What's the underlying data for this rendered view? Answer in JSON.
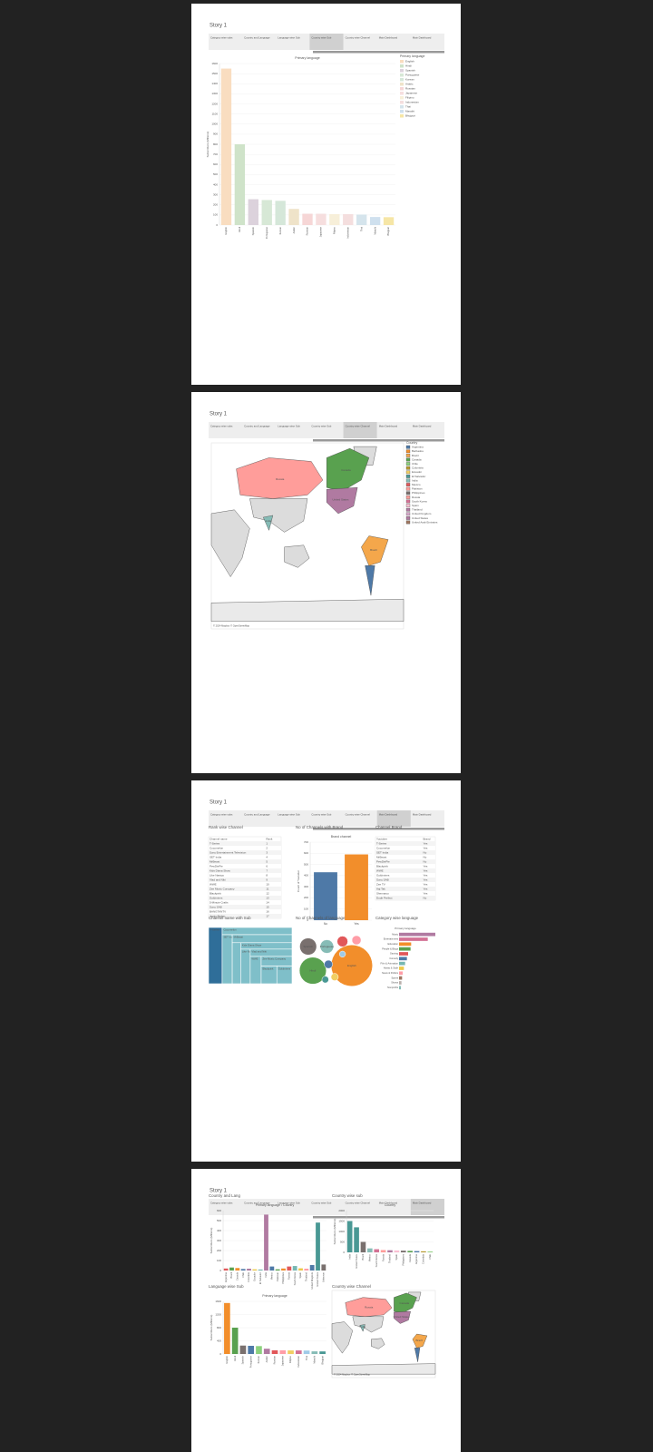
{
  "tabs": [
    "Category wise subs",
    "Country and Language",
    "Language wise Sub",
    "Country wise Sub",
    "Country wise Channel",
    "Main Dashboard",
    "Main Dashboard"
  ],
  "pages": [
    {
      "title": "Story 1",
      "active_tab": 3,
      "panels": [
        {
          "chart": {
            "type": "bar",
            "title": "Primary language",
            "y_label": "Subscribers (Millions)",
            "legend_title": "Primary language",
            "categories": [
              "English",
              "Hindi",
              "Spanish",
              "Portuguese",
              "Korean",
              "Arabic",
              "Russian",
              "Japanese",
              "Filipino",
              "Indonesian",
              "Thai",
              "Marathi",
              "Bhojpuri"
            ],
            "values": [
              1550,
              800,
              256,
              248,
              240,
              160,
              112,
              112,
              108,
              108,
              104,
              80,
              78
            ],
            "colors": [
              "#f9ddc0",
              "#cfe3c9",
              "#dcd2dc",
              "#d7e8d6",
              "#d5e7d9",
              "#efe3c9",
              "#f6d6d6",
              "#f6dede",
              "#f7efd9",
              "#f4dede",
              "#d5e4ec",
              "#cfe0ee",
              "#f6e6a6"
            ],
            "ylim": [
              0,
              1600
            ],
            "yticks": [
              0,
              100,
              200,
              300,
              400,
              500,
              600,
              700,
              800,
              900,
              1000,
              1100,
              1200,
              1300,
              1400,
              1500,
              1600
            ],
            "grid": true
          }
        }
      ]
    },
    {
      "title": "Story 1",
      "active_tab": 4,
      "panels": [
        {
          "chart": {
            "type": "map",
            "legend_title": "Country",
            "attribution": "© 2024 Mapbox © OpenStreetMap",
            "countries": [
              "Argentina",
              "Barbados",
              "Brazil",
              "Canada",
              "Chile",
              "Colombia",
              "Ecuador",
              "El Salvador",
              "India",
              "Mexico",
              "Pakistan",
              "Philippines",
              "Russia",
              "South Korea",
              "Spain",
              "Thailand",
              "United Kingdom",
              "United States",
              "United Arab Emirates"
            ],
            "colors": [
              "#4e79a7",
              "#f28e2b",
              "#f4a74b",
              "#59a14f",
              "#8cd17d",
              "#b6992d",
              "#f1ce63",
              "#499894",
              "#86bcb6",
              "#e15759",
              "#ff9d9a",
              "#79706e",
              "#ff9d9a",
              "#d37295",
              "#fabfd2",
              "#b07aa1",
              "#d4a6c8",
              "#b07aa1",
              "#9d7660"
            ],
            "map_labels": [
              "Russia",
              "Canada",
              "United States",
              "Brazil",
              "India"
            ]
          }
        }
      ]
    },
    {
      "title": "Story 1",
      "active_tab": 5,
      "panels": [
        {
          "title": "Rank wise Channel",
          "chart": {
            "type": "table",
            "columns": [
              "Channel name",
              "Rank"
            ],
            "rows": [
              [
                "T-Series",
                "1"
              ],
              [
                "Cocomelon",
                "2"
              ],
              [
                "Sony Entertainment Television",
                "3"
              ],
              [
                "SET India",
                "4"
              ],
              [
                "MrBeast",
                "5"
              ],
              [
                "PewDiePie",
                "6"
              ],
              [
                "Kids Diana Show",
                "7"
              ],
              [
                "Like Nastya",
                "8"
              ],
              [
                "Vlad and Niki",
                "9"
              ],
              [
                "WWE",
                "10"
              ],
              [
                "Zee Music Company",
                "11"
              ],
              [
                "Blackpink",
                "12"
              ],
              [
                "Goldmines",
                "13"
              ],
              [
                "5-Minute Crafts",
                "14"
              ],
              [
                "Sony SAB",
                "15"
              ],
              [
                "BANGTANTV",
                "16"
              ],
              [
                "Justin Bieber",
                "17"
              ]
            ]
          }
        },
        {
          "title": "No of Channels with Brand",
          "chart": {
            "type": "bar",
            "title": "Brand channel",
            "y_label": "Count of Youtuber",
            "categories": [
              "No",
              "Yes"
            ],
            "values": [
              430,
              590
            ],
            "colors": [
              "#4e79a7",
              "#f28e2b"
            ],
            "ylim": [
              0,
              700
            ],
            "yticks": [
              0,
              100,
              200,
              300,
              400,
              500,
              600,
              700
            ],
            "grid": true
          }
        },
        {
          "title": "Channel Brand",
          "chart": {
            "type": "table",
            "columns": [
              "Youtuber",
              "Brand"
            ],
            "rows": [
              [
                "T-Series",
                "Yes"
              ],
              [
                "Cocomelon",
                "Yes"
              ],
              [
                "SET India",
                "No"
              ],
              [
                "MrBeast",
                "No"
              ],
              [
                "PewDiePie",
                "No"
              ],
              [
                "Blackpink",
                "Yes"
              ],
              [
                "WWE",
                "Yes"
              ],
              [
                "Goldmines",
                "Yes"
              ],
              [
                "Sony SAB",
                "Yes"
              ],
              [
                "Zee TV",
                "Yes"
              ],
              [
                "Aaj Tak",
                "Yes"
              ],
              [
                "Shemaroo",
                "Yes"
              ],
              [
                "Dude Perfect",
                "No"
              ]
            ]
          }
        },
        {
          "title": "Channel name with Sub",
          "chart": {
            "type": "treemap",
            "color": "#7fbfc9",
            "labels": [
              "T-Series",
              "Cocomelon",
              "SET India",
              "MrBeast",
              "PewDiePie",
              "Kids Diana Show",
              "Like Nastya",
              "Vlad and Niki",
              "WWE",
              "Zee Music Company",
              "Blackpink",
              "Goldmines"
            ],
            "values": [
              245,
              162,
              159,
              154,
              111,
              106,
              106,
              98,
              96,
              96,
              89,
              86
            ]
          }
        },
        {
          "title": "No of Channels of language",
          "chart": {
            "type": "bubble",
            "categories": [
              "English",
              "Hindi",
              "Spanish",
              "Portuguese",
              "Korean",
              "Arabic",
              "Russian",
              "Japanese",
              "Thai",
              "Indonesian"
            ],
            "values": [
              450,
              190,
              75,
              48,
              30,
              22,
              18,
              14,
              12,
              10
            ],
            "colors": [
              "#f28e2b",
              "#59a14f",
              "#79706e",
              "#86bcb6",
              "#e15759",
              "#ff9da7",
              "#4e79a7",
              "#f1ce63",
              "#499894",
              "#a0cbe8"
            ]
          }
        },
        {
          "title": "Category wise language",
          "chart": {
            "type": "hbar",
            "legend_title": "Primary language",
            "categories": [
              "Music",
              "Entertainment",
              "Education",
              "People & Blogs",
              "Gaming",
              "Comedy",
              "Film & Animation",
              "Howto & Style",
              "News & Politics",
              "Sports",
              "Shows",
              "Nonprofits"
            ],
            "values": [
              120,
              95,
              40,
              38,
              30,
              26,
              20,
              16,
              12,
              10,
              8,
              6
            ],
            "colors": [
              "#b07aa1",
              "#d37295",
              "#f28e2b",
              "#59a14f",
              "#e15759",
              "#4e79a7",
              "#76b7b2",
              "#edc948",
              "#ff9da7",
              "#9c755f",
              "#bab0ac",
              "#86bcb6"
            ]
          }
        }
      ]
    },
    {
      "title": "Story 1",
      "active_tab": 6,
      "panels": [
        {
          "title": "Country and Lang",
          "chart": {
            "type": "bar",
            "title": "Primary language / Country",
            "y_label": "Subscribers (Millions)",
            "categories": [
              "Argentina",
              "Brazil",
              "Canada",
              "Chile",
              "Colombia",
              "Ecuador",
              "El Salvador",
              "India",
              "Mexico",
              "Pakistan",
              "Philippines",
              "Russia",
              "South Korea",
              "Spain",
              "Thailand",
              "United Kingdom",
              "United States",
              "Unknown"
            ],
            "values": [
              20,
              30,
              25,
              15,
              18,
              12,
              10,
              560,
              40,
              12,
              20,
              40,
              45,
              22,
              18,
              55,
              480,
              60
            ],
            "colors": [
              "#e15759",
              "#59a14f",
              "#f28e2b",
              "#4e79a7",
              "#b07aa1",
              "#edc948",
              "#76b7b2",
              "#b07aa1",
              "#4e79a7",
              "#59a14f",
              "#f28e2b",
              "#e15759",
              "#76b7b2",
              "#edc948",
              "#ff9da7",
              "#4e79a7",
              "#499894",
              "#79706e"
            ],
            "ylim": [
              0,
              600
            ],
            "yticks": [
              0,
              100,
              200,
              300,
              400,
              500,
              600
            ],
            "grid": true
          }
        },
        {
          "title": "Country wise sub",
          "chart": {
            "type": "bar",
            "title": "Country",
            "y_label": "Subscribers (Millions)",
            "categories": [
              "India",
              "United States",
              "Brazil",
              "Mexico",
              "South Korea",
              "Russia",
              "Thailand",
              "Spain",
              "Philippines",
              "Canada",
              "Argentina",
              "Colombia",
              "Chile"
            ],
            "values": [
              1500,
              1200,
              500,
              190,
              150,
              110,
              100,
              90,
              80,
              70,
              60,
              50,
              40
            ],
            "colors": [
              "#499894",
              "#499894",
              "#79706e",
              "#86bcb6",
              "#d37295",
              "#ff9d9a",
              "#b07aa1",
              "#fabfd2",
              "#79706e",
              "#59a14f",
              "#4e79a7",
              "#b6992d",
              "#8cd17d"
            ],
            "ylim": [
              0,
              2000
            ],
            "yticks": [
              0,
              500,
              1000,
              1500,
              2000
            ],
            "grid": true
          }
        },
        {
          "title": "Language wise Sub",
          "chart": {
            "type": "bar",
            "title": "Primary language",
            "y_label": "Subscribers (Millions)",
            "categories": [
              "English",
              "Hindi",
              "Spanish",
              "Portuguese",
              "Korean",
              "Arabic",
              "Russian",
              "Japanese",
              "Filipino",
              "Indonesian",
              "Thai",
              "Marathi",
              "Bhojpuri"
            ],
            "values": [
              1550,
              800,
              256,
              248,
              240,
              160,
              112,
              112,
              108,
              108,
              104,
              80,
              78
            ],
            "colors": [
              "#f28e2b",
              "#59a14f",
              "#79706e",
              "#4e79a7",
              "#8cd17d",
              "#b07aa1",
              "#e15759",
              "#ff9da7",
              "#f1ce63",
              "#d37295",
              "#a0cbe8",
              "#86bcb6",
              "#499894"
            ],
            "ylim": [
              0,
              1600
            ],
            "yticks": [
              0,
              400,
              800,
              1200,
              1600
            ],
            "grid": true
          }
        },
        {
          "title": "Country wise Channel",
          "chart": {
            "type": "map",
            "attribution": "© 2024 Mapbox © OpenStreetMap",
            "countries": [
              "Argentina",
              "Brazil",
              "Canada",
              "India",
              "Russia",
              "United States"
            ],
            "colors": [
              "#4e79a7",
              "#f4a74b",
              "#59a14f",
              "#86bcb6",
              "#ff9d9a",
              "#b07aa1"
            ],
            "map_labels": [
              "Russia",
              "Canada",
              "United States",
              "Brazil",
              "India"
            ]
          }
        }
      ]
    }
  ]
}
